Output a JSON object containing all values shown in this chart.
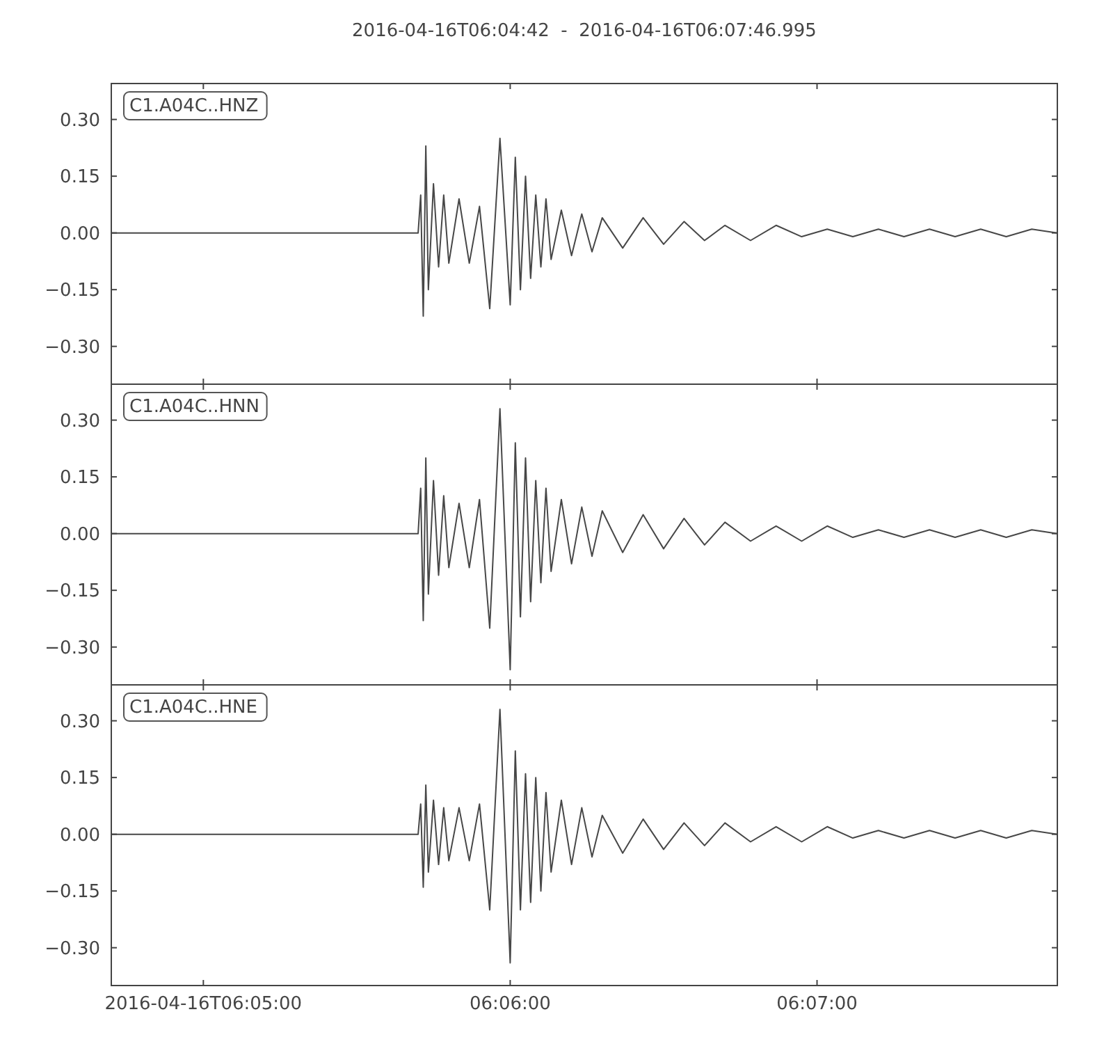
{
  "chart_data": [
    {
      "type": "line",
      "title": "2016-04-16T06:04:42  -  2016-04-16T06:07:46.995",
      "annotations": [
        "C1.A04C..HNZ"
      ],
      "tick_labels": "y",
      "x": [
        6.078333,
        6.095,
        6.095139,
        6.095278,
        6.095417,
        6.095556,
        6.095833,
        6.096111,
        6.096389,
        6.096667,
        6.097222,
        6.097778,
        6.098333,
        6.098889,
        6.099444,
        6.1,
        6.100278,
        6.100556,
        6.100833,
        6.101111,
        6.101389,
        6.101667,
        6.101944,
        6.102222,
        6.102778,
        6.103333,
        6.103889,
        6.104444,
        6.105,
        6.106111,
        6.107222,
        6.108333,
        6.109444,
        6.110556,
        6.111667,
        6.113056,
        6.114444,
        6.115833,
        6.117222,
        6.118611,
        6.12,
        6.121389,
        6.122778,
        6.124167,
        6.125556,
        6.126944,
        6.128333,
        6.129721
      ],
      "series": [
        {
          "color": "#474747",
          "values": [
            0,
            0,
            0.1,
            -0.22,
            0.23,
            -0.15,
            0.13,
            -0.09,
            0.1,
            -0.08,
            0.09,
            -0.08,
            0.07,
            -0.2,
            0.25,
            -0.19,
            0.2,
            -0.15,
            0.15,
            -0.12,
            0.1,
            -0.09,
            0.09,
            -0.07,
            0.06,
            -0.06,
            0.05,
            -0.05,
            0.04,
            -0.04,
            0.04,
            -0.03,
            0.03,
            -0.02,
            0.02,
            -0.02,
            0.02,
            -0.01,
            0.01,
            -0.01,
            0.01,
            -0.01,
            0.01,
            -0.01,
            0.01,
            -0.01,
            0.01,
            0
          ]
        }
      ],
      "xlim": [
        6.078333,
        6.129721
      ],
      "xticks": [
        {
          "value": 6.083333,
          "label": null
        },
        {
          "value": 6.1,
          "label": null
        },
        {
          "value": 6.116667,
          "label": null
        }
      ],
      "ylim": [
        -0.4,
        0.395
      ],
      "yticks": [
        {
          "value": -0.3,
          "label": "−0.30"
        },
        {
          "value": -0.15,
          "label": "−0.15"
        },
        {
          "value": 0,
          "label": "0.00"
        },
        {
          "value": 0.15,
          "label": "0.15"
        },
        {
          "value": 0.3,
          "label": "0.30"
        }
      ]
    },
    {
      "type": "line",
      "annotations": [
        "C1.A04C..HNN"
      ],
      "tick_labels": "y",
      "x": [
        6.078333,
        6.095,
        6.095139,
        6.095278,
        6.095417,
        6.095556,
        6.095833,
        6.096111,
        6.096389,
        6.096667,
        6.097222,
        6.097778,
        6.098333,
        6.098889,
        6.099444,
        6.1,
        6.100278,
        6.100556,
        6.100833,
        6.101111,
        6.101389,
        6.101667,
        6.101944,
        6.102222,
        6.102778,
        6.103333,
        6.103889,
        6.104444,
        6.105,
        6.106111,
        6.107222,
        6.108333,
        6.109444,
        6.110556,
        6.111667,
        6.113056,
        6.114444,
        6.115833,
        6.117222,
        6.118611,
        6.12,
        6.121389,
        6.122778,
        6.124167,
        6.125556,
        6.126944,
        6.128333,
        6.129721
      ],
      "series": [
        {
          "color": "#474747",
          "values": [
            0,
            0,
            0.12,
            -0.23,
            0.2,
            -0.16,
            0.14,
            -0.11,
            0.1,
            -0.09,
            0.08,
            -0.09,
            0.09,
            -0.25,
            0.33,
            -0.36,
            0.24,
            -0.22,
            0.2,
            -0.18,
            0.14,
            -0.13,
            0.12,
            -0.1,
            0.09,
            -0.08,
            0.07,
            -0.06,
            0.06,
            -0.05,
            0.05,
            -0.04,
            0.04,
            -0.03,
            0.03,
            -0.02,
            0.02,
            -0.02,
            0.02,
            -0.01,
            0.01,
            -0.01,
            0.01,
            -0.01,
            0.01,
            -0.01,
            0.01,
            0
          ]
        }
      ],
      "xlim": [
        6.078333,
        6.129721
      ],
      "xticks": [
        {
          "value": 6.083333,
          "label": null
        },
        {
          "value": 6.1,
          "label": null
        },
        {
          "value": 6.116667,
          "label": null
        }
      ],
      "ylim": [
        -0.4,
        0.395
      ],
      "yticks": [
        {
          "value": -0.3,
          "label": "−0.30"
        },
        {
          "value": -0.15,
          "label": "−0.15"
        },
        {
          "value": 0,
          "label": "0.00"
        },
        {
          "value": 0.15,
          "label": "0.15"
        },
        {
          "value": 0.3,
          "label": "0.30"
        }
      ]
    },
    {
      "type": "line",
      "annotations": [
        "C1.A04C..HNE"
      ],
      "x": [
        6.078333,
        6.095,
        6.095139,
        6.095278,
        6.095417,
        6.095556,
        6.095833,
        6.096111,
        6.096389,
        6.096667,
        6.097222,
        6.097778,
        6.098333,
        6.098889,
        6.099444,
        6.1,
        6.100278,
        6.100556,
        6.100833,
        6.101111,
        6.101389,
        6.101667,
        6.101944,
        6.102222,
        6.102778,
        6.103333,
        6.103889,
        6.104444,
        6.105,
        6.106111,
        6.107222,
        6.108333,
        6.109444,
        6.110556,
        6.111667,
        6.113056,
        6.114444,
        6.115833,
        6.117222,
        6.118611,
        6.12,
        6.121389,
        6.122778,
        6.124167,
        6.125556,
        6.126944,
        6.128333,
        6.129721
      ],
      "series": [
        {
          "color": "#474747",
          "values": [
            0,
            0,
            0.08,
            -0.14,
            0.13,
            -0.1,
            0.09,
            -0.08,
            0.07,
            -0.07,
            0.07,
            -0.07,
            0.08,
            -0.2,
            0.33,
            -0.34,
            0.22,
            -0.2,
            0.16,
            -0.18,
            0.15,
            -0.15,
            0.11,
            -0.1,
            0.09,
            -0.08,
            0.07,
            -0.06,
            0.05,
            -0.05,
            0.04,
            -0.04,
            0.03,
            -0.03,
            0.03,
            -0.02,
            0.02,
            -0.02,
            0.02,
            -0.01,
            0.01,
            -0.01,
            0.01,
            -0.01,
            0.01,
            -0.01,
            0.01,
            0
          ]
        }
      ],
      "xlim": [
        6.078333,
        6.129721
      ],
      "xticks": [
        {
          "value": 6.083333,
          "label": "2016-04-16T06:05:00"
        },
        {
          "value": 6.1,
          "label": "06:06:00"
        },
        {
          "value": 6.116667,
          "label": "06:07:00"
        }
      ],
      "ylim": [
        -0.4,
        0.395
      ],
      "yticks": [
        {
          "value": -0.3,
          "label": "−0.30"
        },
        {
          "value": -0.15,
          "label": "−0.15"
        },
        {
          "value": 0,
          "label": "0.00"
        },
        {
          "value": 0.15,
          "label": "0.15"
        },
        {
          "value": 0.3,
          "label": "0.30"
        }
      ]
    }
  ]
}
